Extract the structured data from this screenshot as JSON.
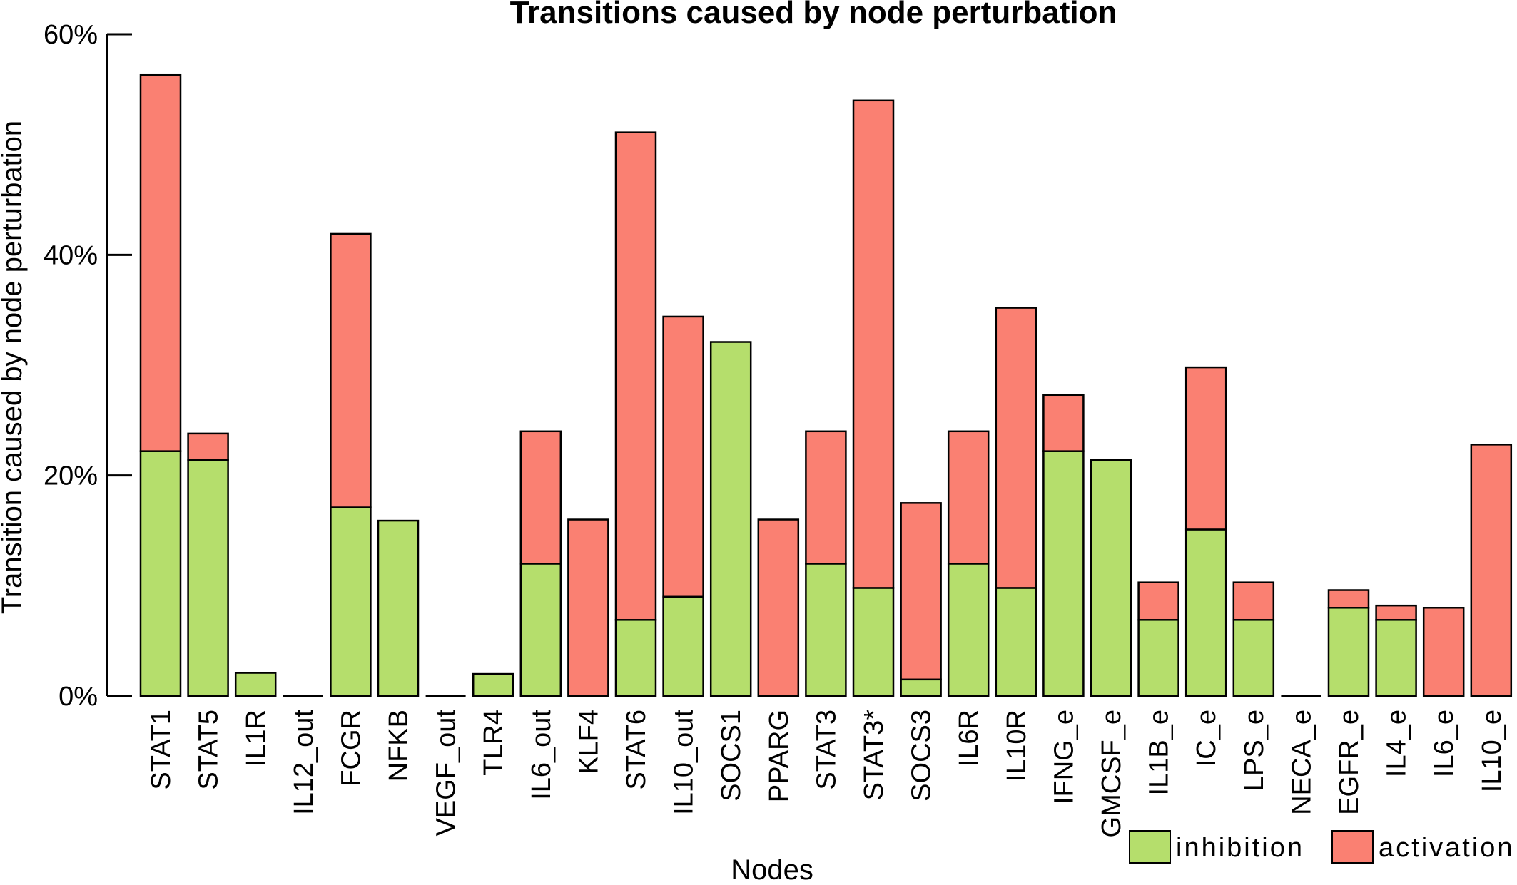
{
  "chart_data": {
    "type": "bar",
    "stacked": true,
    "title": "Transitions caused by node perturbation",
    "xlabel": "Nodes",
    "ylabel": "Transition caused by node perturbation",
    "ylim": [
      0,
      60
    ],
    "yticks": [
      0,
      20,
      40,
      60
    ],
    "ytick_labels": [
      "0%",
      "20%",
      "40%",
      "60%"
    ],
    "legend_position": "bottom-right",
    "categories": [
      "STAT1",
      "STAT5",
      "IL1R",
      "IL12_out",
      "FCGR",
      "NFKB",
      "VEGF_out",
      "TLR4",
      "IL6_out",
      "KLF4",
      "STAT6",
      "IL10_out",
      "SOCS1",
      "PPARG",
      "STAT3",
      "STAT3*",
      "SOCS3",
      "IL6R",
      "IL10R",
      "IFNG_e",
      "GMCSF_e",
      "IL1B_e",
      "IC_e",
      "LPS_e",
      "NECA_e",
      "EGFR_e",
      "IL4_e",
      "IL6_e",
      "IL10_e"
    ],
    "series": [
      {
        "name": "inhibition",
        "color": "#b5de6c",
        "values": [
          22.2,
          21.4,
          2.1,
          0,
          17.1,
          15.9,
          0,
          2.0,
          12.0,
          0,
          6.9,
          9.0,
          32.1,
          0,
          12.0,
          9.8,
          1.5,
          12.0,
          9.8,
          22.2,
          21.4,
          6.9,
          15.1,
          6.9,
          0,
          8.0,
          6.9,
          0,
          0
        ]
      },
      {
        "name": "activation",
        "color": "#fa8072",
        "values": [
          34.1,
          2.4,
          0,
          0,
          24.8,
          0,
          0,
          0,
          12.0,
          16.0,
          44.2,
          25.4,
          0,
          16.0,
          12.0,
          44.2,
          16.0,
          12.0,
          25.4,
          5.1,
          0,
          3.4,
          14.7,
          3.4,
          0,
          1.6,
          1.3,
          8.0,
          22.8
        ]
      }
    ]
  }
}
